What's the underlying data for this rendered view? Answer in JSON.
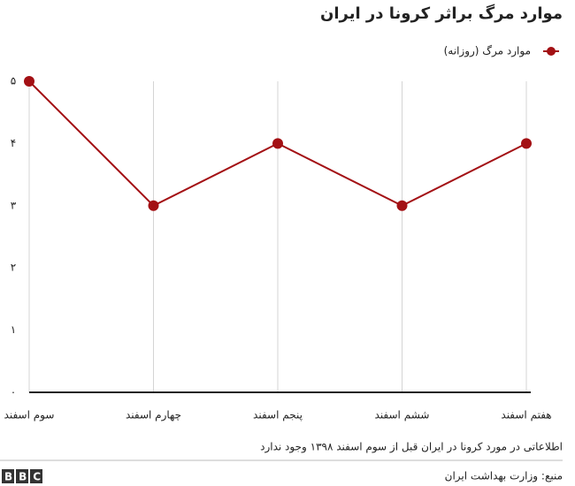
{
  "chart_data": {
    "type": "line",
    "title": "موارد مرگ براثر کرونا در ایران",
    "categories": [
      "سوم اسفند",
      "چهارم اسفند",
      "پنجم اسفند",
      "ششم اسفند",
      "هفتم اسفند"
    ],
    "series": [
      {
        "name": "موارد مرگ (روزانه)",
        "color": "#a31014",
        "values": [
          5,
          3,
          4,
          3,
          4
        ]
      }
    ],
    "ylim": [
      0,
      5
    ],
    "yticks": [
      {
        "value": 0,
        "label": "۰"
      },
      {
        "value": 1,
        "label": "۱"
      },
      {
        "value": 2,
        "label": "۲"
      },
      {
        "value": 3,
        "label": "۳"
      },
      {
        "value": 4,
        "label": "۴"
      },
      {
        "value": 5,
        "label": "۵"
      }
    ],
    "grid": true,
    "legend": "top-right",
    "note": "اطلاعاتی در مورد کرونا در ایران قبل از سوم اسفند ۱۳۹۸ وجود ندارد",
    "source": "منبع: وزارت بهداشت ایران",
    "logo": "BBC"
  }
}
